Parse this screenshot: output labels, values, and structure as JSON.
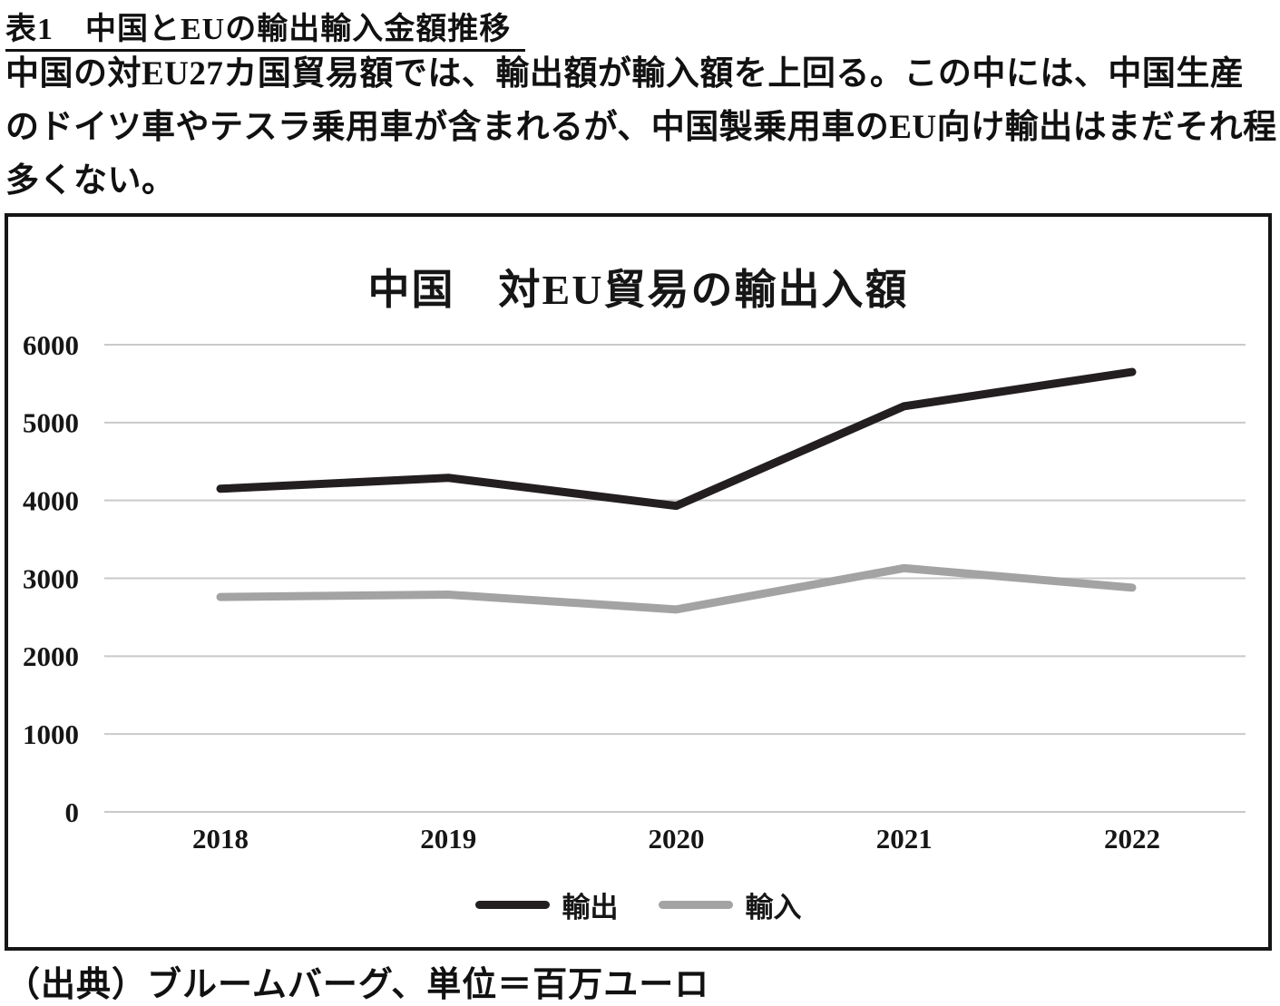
{
  "header": {
    "caption": "表1　中国とEUの輸出輸入金額推移"
  },
  "intro": {
    "text": "中国の対EU27カ国貿易額では、輸出額が輸入額を上回る。この中には、中国生産のドイツ車やテスラ乗用車が含まれるが、中国製乗用車のEU向け輸出はまだそれ程多くない。"
  },
  "chart_data": {
    "type": "line",
    "title": "中国　対EU貿易の輸出入額",
    "categories": [
      "2018",
      "2019",
      "2020",
      "2021",
      "2022"
    ],
    "series": [
      {
        "name": "輸出",
        "color": "#231f20",
        "values": [
          4150,
          4290,
          3930,
          5210,
          5650
        ]
      },
      {
        "name": "輸入",
        "color": "#a3a3a3",
        "values": [
          2760,
          2790,
          2600,
          3130,
          2880
        ]
      }
    ],
    "ylim": [
      0,
      6000
    ],
    "ytick_step": 1000,
    "grid": "horizontal",
    "gridline_color": "#c9c9c9",
    "legend_position": "bottom-inside",
    "xlabel": "",
    "ylabel": ""
  },
  "source": {
    "text": "（出典）ブルームバーグ、単位＝百万ユーロ"
  }
}
